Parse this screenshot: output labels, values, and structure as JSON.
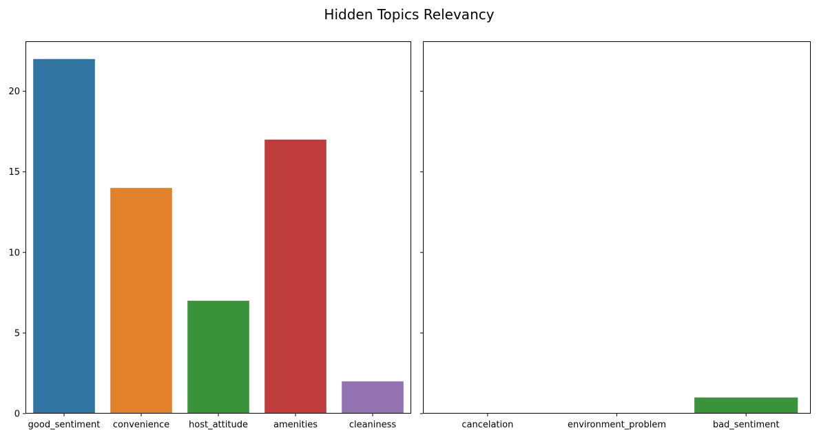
{
  "title": "Hidden Topics Relevancy",
  "chart_data": [
    {
      "type": "bar",
      "categories": [
        "good_sentiment",
        "convenience",
        "host_attitude",
        "amenities",
        "cleaniness"
      ],
      "values": [
        22,
        14,
        7,
        17,
        2
      ],
      "colors": [
        "#3274a1",
        "#e1812c",
        "#3a923a",
        "#c03d3e",
        "#9372b2"
      ],
      "ylim": [
        0,
        23.1
      ],
      "yticks": [
        0,
        5,
        10,
        15,
        20
      ],
      "xlabel": "",
      "ylabel": "",
      "grid": false
    },
    {
      "type": "bar",
      "categories": [
        "cancelation",
        "environment_problem",
        "bad_sentiment"
      ],
      "values": [
        0,
        0,
        1
      ],
      "colors": [
        "#3274a1",
        "#e1812c",
        "#3a923a"
      ],
      "ylim": [
        0,
        23.1
      ],
      "yticks": [
        0,
        5,
        10,
        15,
        20
      ],
      "shared_y": true,
      "xlabel": "",
      "ylabel": "",
      "grid": false
    }
  ]
}
